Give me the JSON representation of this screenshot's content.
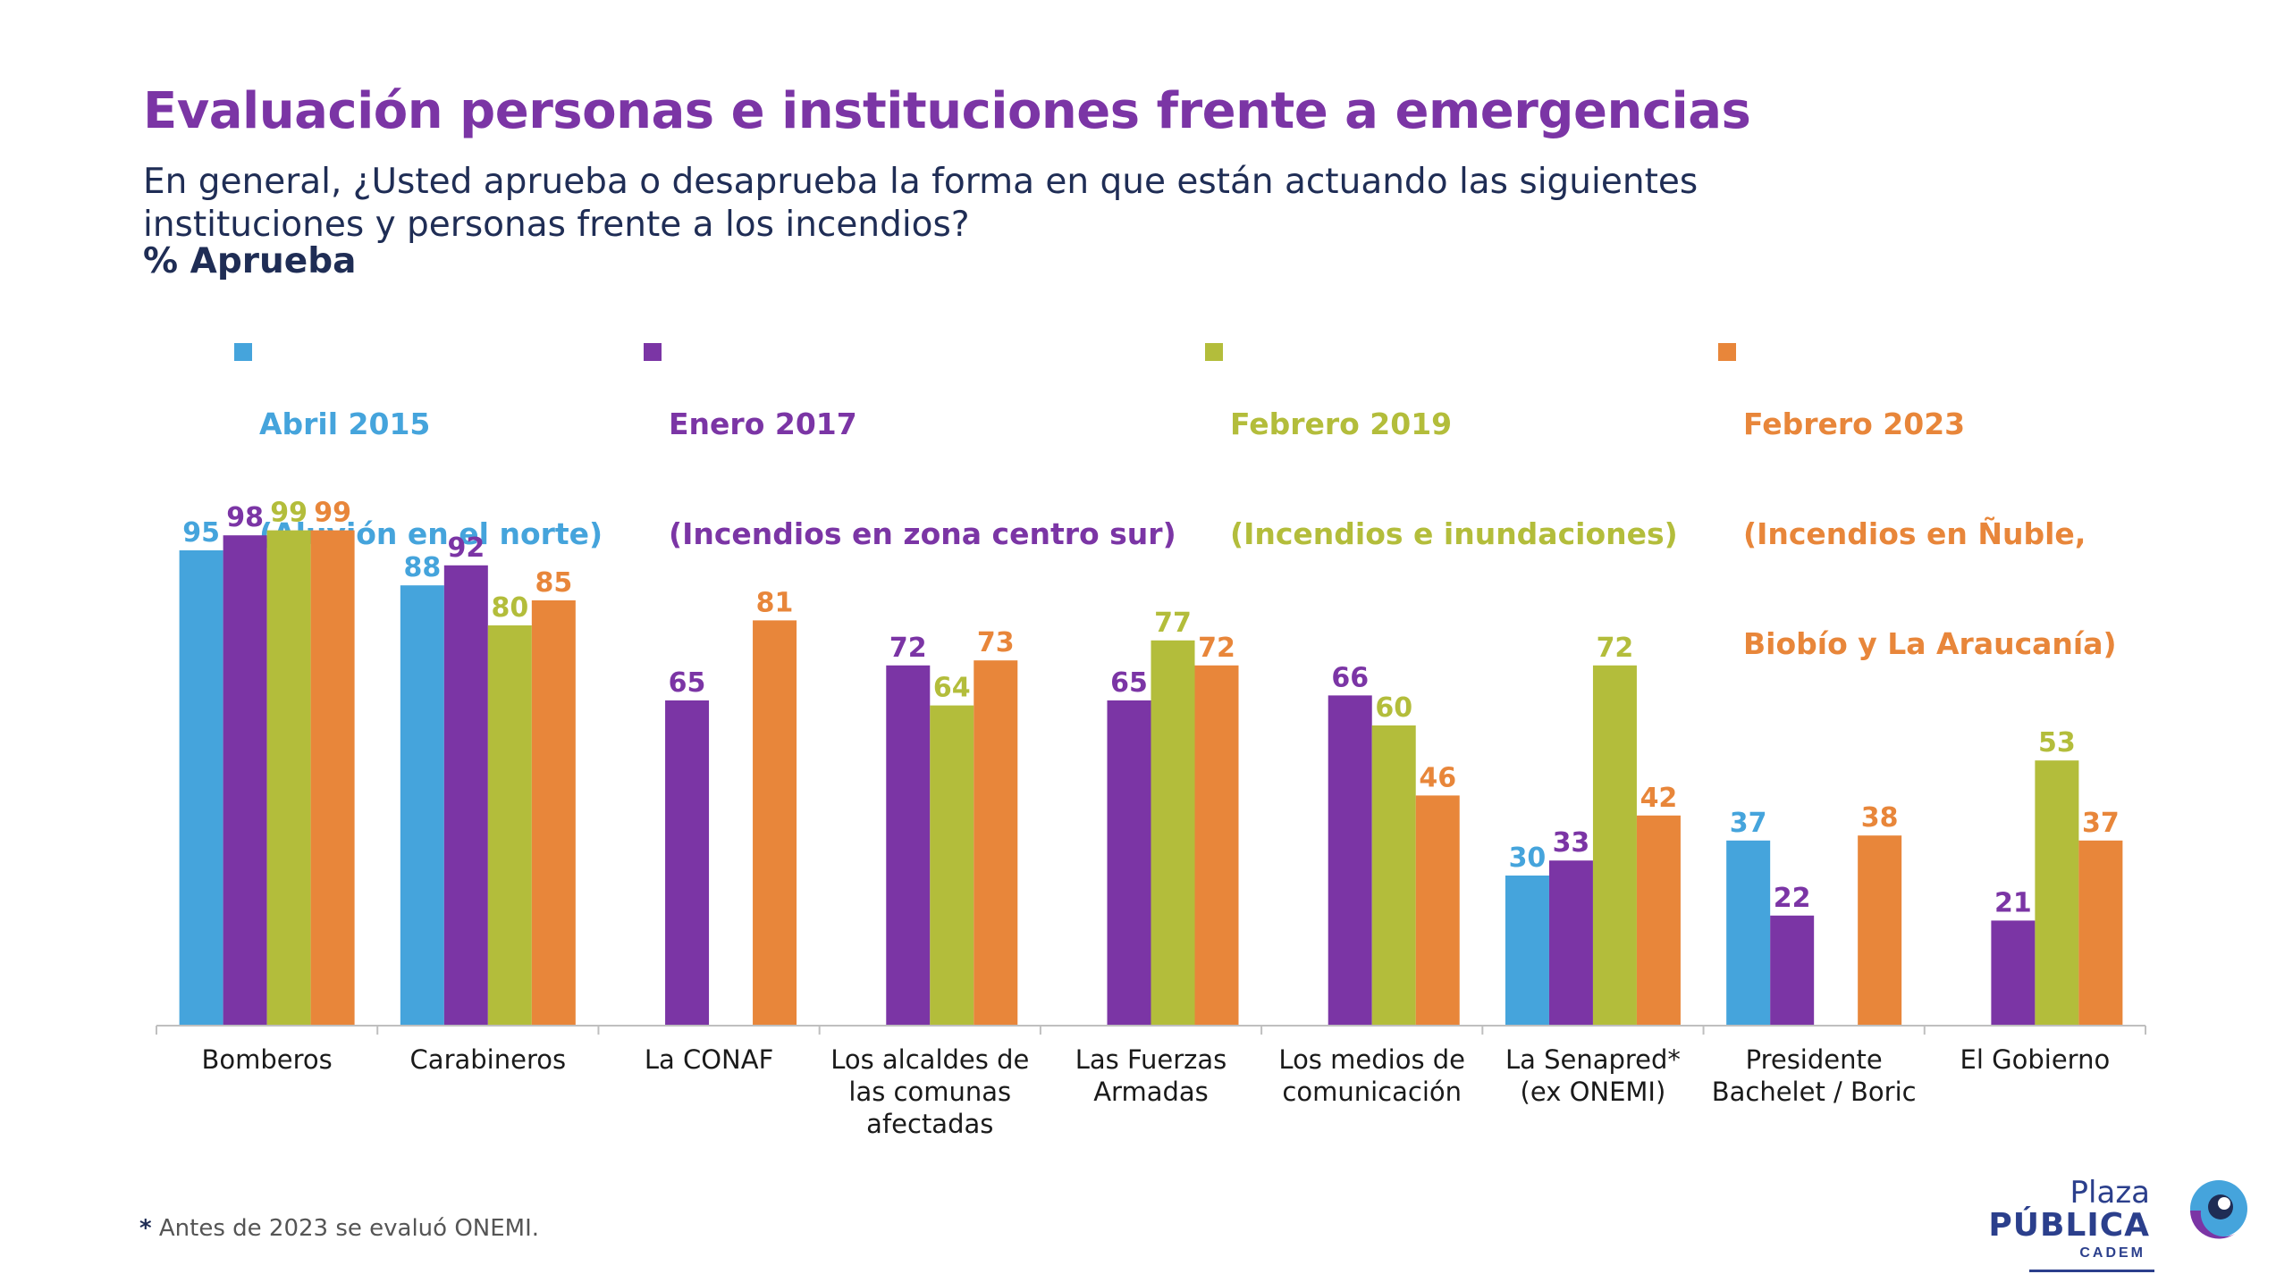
{
  "title": "Evaluación personas e instituciones frente a emergencias",
  "question": "En general, ¿Usted aprueba o desaprueba la forma en que están actuando las siguientes instituciones y personas frente a los incendios?",
  "unit_label": "% Aprueba",
  "footnote": {
    "mark": "*",
    "text": " Antes de 2023 se evaluó ONEMI."
  },
  "logo": {
    "line1": "Plaza",
    "line2": "PÚBLICA",
    "line3": "CADEM"
  },
  "legend": [
    {
      "line1": "Abril 2015",
      "line2": "(Aluvión en el norte)",
      "line3": ""
    },
    {
      "line1": "Enero 2017",
      "line2": "(Incendios en zona centro sur)",
      "line3": ""
    },
    {
      "line1": "Febrero 2019",
      "line2": "(Incendios e inundaciones)",
      "line3": ""
    },
    {
      "line1": "Febrero 2023",
      "line2": "(Incendios en Ñuble,",
      "line3": "Biobío y La Araucanía)"
    }
  ],
  "colors": {
    "series": [
      "#45a4dc",
      "#7b35a5",
      "#b3bd3b",
      "#e8863a"
    ],
    "title": "#7b35a5",
    "text": "#1f2d55",
    "axis": "#bfbfbf"
  },
  "chart_data": {
    "type": "bar",
    "ylim": [
      0,
      100
    ],
    "grid": false,
    "legend_position": "top",
    "categories": [
      [
        "Bomberos"
      ],
      [
        "Carabineros"
      ],
      [
        "La CONAF"
      ],
      [
        "Los alcaldes de",
        "las comunas",
        "afectadas"
      ],
      [
        "Las Fuerzas",
        "Armadas"
      ],
      [
        "Los medios de",
        "comunicación"
      ],
      [
        "La Senapred*",
        "(ex ONEMI)"
      ],
      [
        "Presidente",
        "Bachelet / Boric"
      ],
      [
        "El Gobierno"
      ]
    ],
    "series": [
      {
        "name": "Abril 2015 (Aluvión en el norte)",
        "values": [
          95,
          88,
          null,
          null,
          null,
          null,
          30,
          37,
          null
        ]
      },
      {
        "name": "Enero 2017 (Incendios en zona centro sur)",
        "values": [
          98,
          92,
          65,
          72,
          65,
          66,
          33,
          22,
          21
        ]
      },
      {
        "name": "Febrero 2019 (Incendios e inundaciones)",
        "values": [
          99,
          80,
          null,
          64,
          77,
          60,
          72,
          null,
          53
        ]
      },
      {
        "name": "Febrero 2023 (Incendios en Ñuble, Biobío y La Araucanía)",
        "values": [
          99,
          85,
          81,
          73,
          72,
          46,
          42,
          38,
          37
        ]
      }
    ]
  }
}
